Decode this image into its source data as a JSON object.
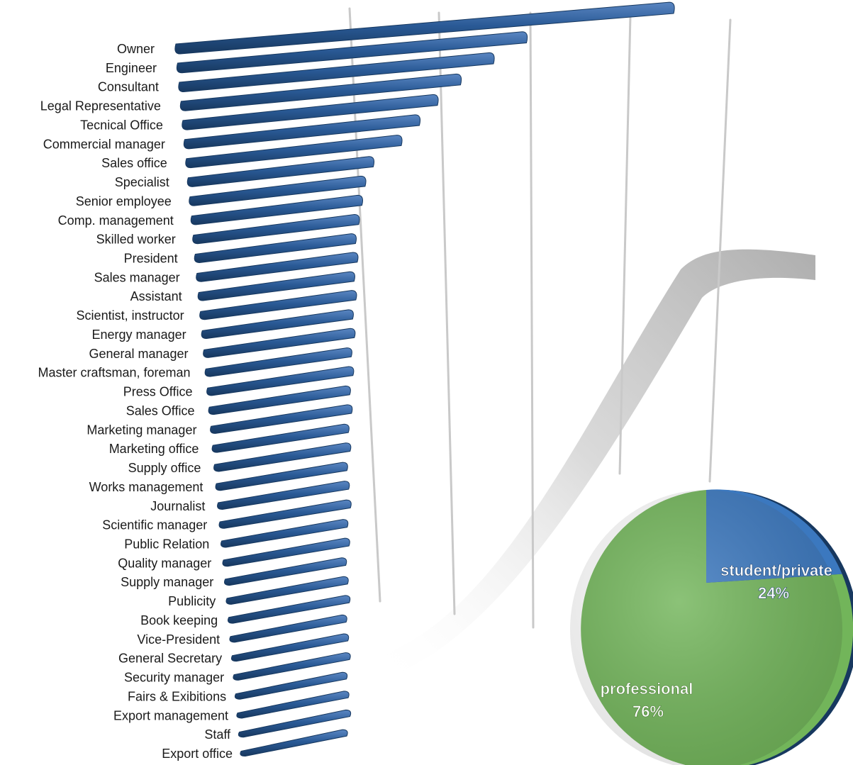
{
  "colors": {
    "bar": "#2a5a96",
    "bar_dark": "#17385f",
    "bar_light": "#5a86c2",
    "gridline": "#c9c9c9",
    "pie_professional": "#72b55a",
    "pie_student": "#3b78bf",
    "pie_label": "#ffffff"
  },
  "chart_data": [
    {
      "type": "bar",
      "orientation": "horizontal-3d",
      "categories": [
        "Owner",
        "Engineer",
        "Consultant",
        "Legal Representative",
        "Tecnical Office",
        "Commercial manager",
        "Sales office",
        "Specialist",
        "Senior employee",
        "Comp. management",
        "Skilled worker",
        "President",
        "Sales manager",
        "Assistant",
        "Scientist, instructor",
        "Energy manager",
        "General manager",
        "Master craftsman, foreman",
        "Press Office",
        "Sales Office",
        "Marketing manager",
        "Marketing office",
        "Supply office",
        "Works management",
        "Journalist",
        "Scientific manager",
        "Public Relation",
        "Quality manager",
        "Supply manager",
        "Publicity",
        "Book keeping",
        "Vice-President",
        "General Secretary",
        "Security manager",
        "Fairs & Exibitions",
        "Export management",
        "Staff",
        "Export office"
      ],
      "values": [
        100,
        70,
        63,
        56,
        51,
        47,
        43,
        37,
        35,
        34,
        33,
        32,
        32,
        31,
        31,
        30,
        30,
        29,
        29,
        28,
        28,
        27,
        27,
        26,
        26,
        26,
        25,
        25,
        24,
        24,
        24,
        23,
        23,
        23,
        22,
        22,
        22,
        21
      ],
      "gridlines": 5,
      "grid": true,
      "legend": "none"
    },
    {
      "type": "pie",
      "slices": [
        {
          "name": "student/private",
          "value": 24,
          "label": "24%"
        },
        {
          "name": "professional",
          "value": 76,
          "label": "76%"
        }
      ]
    }
  ]
}
